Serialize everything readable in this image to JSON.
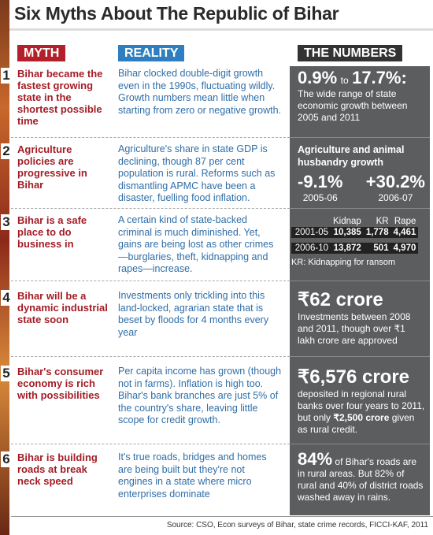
{
  "title": "Six Myths About The Republic of Bihar",
  "headers": {
    "myth": "MYTH",
    "reality": "REALITY",
    "numbers": "THE NUMBERS"
  },
  "rows": [
    {
      "number": "1",
      "myth": "Bihar became the fastest growing state in the shortest possible time",
      "reality": "Bihar clocked double-digit growth even in the 1990s, fluctuating wildly. Growth numbers mean little when starting from zero or negative growth.",
      "numbers": {
        "low": "0.9%",
        "connector": "to",
        "high": "17.7%:",
        "text": "The wide range of state economic growth between 2005 and 2011"
      }
    },
    {
      "number": "2",
      "myth": "Agriculture policies are progressive in Bihar",
      "reality": "Agriculture's share in state GDP is declining, though 87 per cent population is rural. Reforms such as dismantling APMC have been a disaster, fuelling food inflation.",
      "numbers": {
        "heading": "Agriculture and animal husbandry growth",
        "stats": [
          {
            "value": "-9.1%",
            "year": "2005-06"
          },
          {
            "value": "+30.2%",
            "year": "2006-07"
          }
        ]
      }
    },
    {
      "number": "3",
      "myth": "Bihar is a safe place to do business in",
      "reality": "A certain kind of state-backed criminal is much diminished. Yet, gains are being lost as other crimes—burglaries, theft, kidnapping and rapes—increase.",
      "numbers": {
        "columns": [
          "Kidnap",
          "KR",
          "Rape"
        ],
        "table": [
          {
            "period": "2001-05",
            "values": [
              "10,385",
              "1,778",
              "4,461"
            ]
          },
          {
            "period": "2006-10",
            "values": [
              "13,872",
              "501",
              "4,970"
            ]
          }
        ],
        "note": "KR: Kidnapping for ransom"
      }
    },
    {
      "number": "4",
      "myth": "Bihar will be a dynamic industrial state soon",
      "reality": "Investments only trickling into this land-locked, agrarian state that is beset by floods for 4 months every year",
      "numbers": {
        "headline": "₹62 crore",
        "text": "Investments between 2008 and 2011, though over ₹1 lakh crore are approved"
      }
    },
    {
      "number": "5",
      "myth": "Bihar's consumer economy is rich with possibilities",
      "reality": "Per capita income has grown (though not in farms). Inflation is high too. Bihar's bank branches are just 5% of the country's share, leaving little scope for credit growth.",
      "numbers": {
        "headline": "₹6,576 crore",
        "text": "deposited in regional rural banks over four years to 2011, but only",
        "highlight": "₹2,500 crore",
        "text_end": "given as rural credit."
      }
    },
    {
      "number": "6",
      "myth": "Bihar is building roads at break neck speed",
      "reality": "It's true roads, bridges and homes are being built but they're not engines in a state where micro enterprises dominate",
      "numbers": {
        "headline": "84%",
        "text": "of Bihar's roads are in rural areas. But 82% of rural and 40% of district roads washed away in rains."
      }
    }
  ],
  "source": "Source: CSO, Econ surveys of Bihar, state crime records, FICCI-KAF, 2011"
}
